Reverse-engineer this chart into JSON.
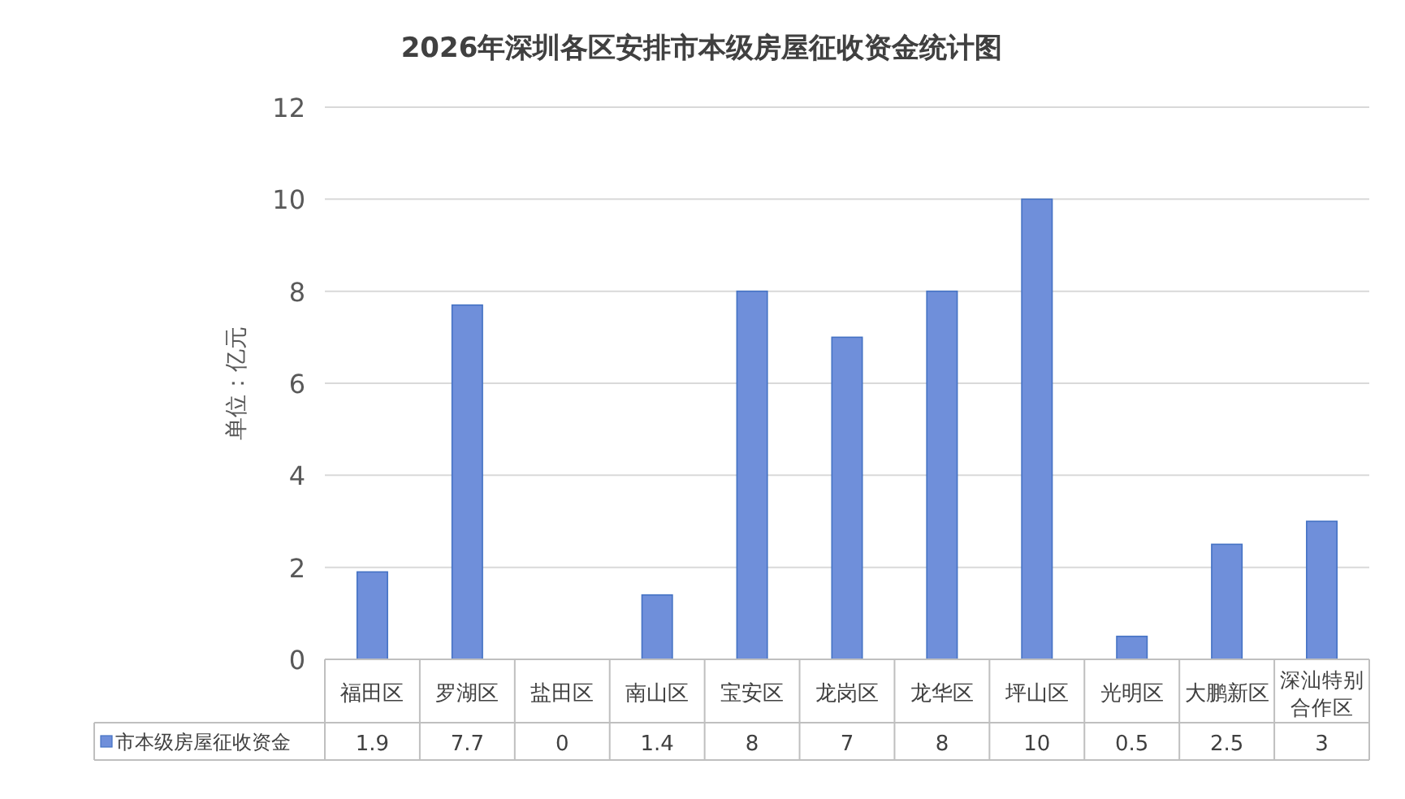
{
  "chart_data": {
    "type": "bar",
    "title": "2026年深圳各区安排市本级房屋征收资金统计图",
    "ylabel": "单位：亿元",
    "categories": [
      "福田区",
      "罗湖区",
      "盐田区",
      "南山区",
      "宝安区",
      "龙岗区",
      "龙华区",
      "坪山区",
      "光明区",
      "大鹏新区",
      "深汕特别合作区"
    ],
    "series": [
      {
        "name": "市本级房屋征收资金",
        "color": "#6f8fda",
        "values": [
          1.9,
          7.7,
          0,
          1.4,
          8,
          7,
          8,
          10,
          0.5,
          2.5,
          3
        ]
      }
    ],
    "ylim": [
      0,
      12
    ],
    "yticks": [
      0,
      2,
      4,
      6,
      8,
      10,
      12
    ],
    "grid": "y",
    "legend": "bottom",
    "data_labels": true
  }
}
